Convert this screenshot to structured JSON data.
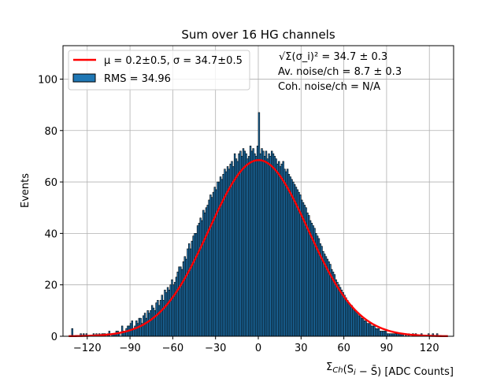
{
  "chart_data": {
    "type": "bar",
    "title": "Sum over 16 HG channels",
    "xlabel": "Σ_Ch(S_i − S̄) [ADC Counts]",
    "ylabel": "Events",
    "xlim": [
      -137,
      137
    ],
    "ylim": [
      0,
      113
    ],
    "x_ticks": [
      -120,
      -90,
      -60,
      -30,
      0,
      30,
      60,
      90,
      120
    ],
    "y_ticks": [
      0,
      20,
      40,
      60,
      80,
      100
    ],
    "x_tick_labels": [
      "−120",
      "−90",
      "−60",
      "−30",
      "0",
      "30",
      "60",
      "90",
      "120"
    ],
    "y_tick_labels": [
      "0",
      "20",
      "40",
      "60",
      "80",
      "100"
    ],
    "grid": true,
    "legend_position": "upper-left",
    "histogram": {
      "bin_width": 1,
      "x_start": -131,
      "x_end": 128,
      "counts": [
        3,
        0,
        0,
        0,
        0,
        0,
        1,
        0,
        1,
        0,
        1,
        0,
        0,
        0,
        0,
        1,
        0,
        1,
        0,
        1,
        0,
        1,
        1,
        1,
        0,
        1,
        2,
        0,
        1,
        1,
        1,
        2,
        2,
        1,
        0,
        4,
        2,
        2,
        3,
        4,
        4,
        5,
        6,
        3,
        4,
        6,
        5,
        7,
        7,
        5,
        8,
        9,
        7,
        10,
        9,
        10,
        12,
        11,
        10,
        13,
        14,
        12,
        14,
        16,
        14,
        18,
        17,
        19,
        18,
        20,
        22,
        20,
        21,
        23,
        25,
        27,
        27,
        26,
        29,
        31,
        30,
        34,
        36,
        34,
        37,
        39,
        40,
        40,
        43,
        44,
        46,
        45,
        49,
        48,
        50,
        51,
        53,
        55,
        54,
        56,
        58,
        57,
        60,
        60,
        62,
        61,
        63,
        65,
        64,
        66,
        65,
        67,
        68,
        66,
        71,
        69,
        68,
        71,
        72,
        70,
        73,
        72,
        71,
        69,
        70,
        74,
        72,
        73,
        71,
        70,
        74,
        87,
        71,
        73,
        72,
        70,
        72,
        69,
        71,
        70,
        72,
        71,
        70,
        69,
        67,
        68,
        66,
        67,
        68,
        65,
        64,
        65,
        63,
        62,
        61,
        60,
        59,
        58,
        57,
        56,
        55,
        53,
        52,
        51,
        50,
        48,
        47,
        45,
        44,
        43,
        42,
        40,
        39,
        38,
        36,
        35,
        33,
        32,
        31,
        30,
        29,
        28,
        26,
        25,
        24,
        22,
        21,
        20,
        19,
        18,
        17,
        16,
        15,
        14,
        13,
        12,
        12,
        11,
        10,
        10,
        9,
        8,
        8,
        7,
        7,
        6,
        6,
        5,
        5,
        5,
        4,
        4,
        4,
        3,
        3,
        3,
        2,
        2,
        2,
        2,
        2,
        1,
        1,
        1,
        1,
        1,
        1,
        1,
        1,
        1,
        1,
        1,
        1,
        0,
        1,
        0,
        1,
        0,
        0,
        1,
        0,
        1,
        0,
        0,
        0,
        1,
        0,
        0,
        0,
        0,
        1,
        0,
        0,
        1,
        0,
        0,
        1,
        0
      ],
      "color": "#1f77b4",
      "edge_color": "#000000"
    },
    "fit_curve": {
      "mu": 0.2,
      "sigma": 34.7,
      "amplitude": 68.5,
      "color": "#ff0000"
    },
    "legend": [
      {
        "label": "μ = 0.2±0.5, σ = 34.7±0.5",
        "kind": "line",
        "color": "#ff0000"
      },
      {
        "label": "RMS = 34.96",
        "kind": "patch",
        "color": "#1f77b4"
      }
    ],
    "annotations": [
      "√Σ(σ_i)² = 34.7 ± 0.3",
      "Av. noise/ch  = 8.7 ± 0.3",
      "Coh. noise/ch = N/A"
    ]
  }
}
